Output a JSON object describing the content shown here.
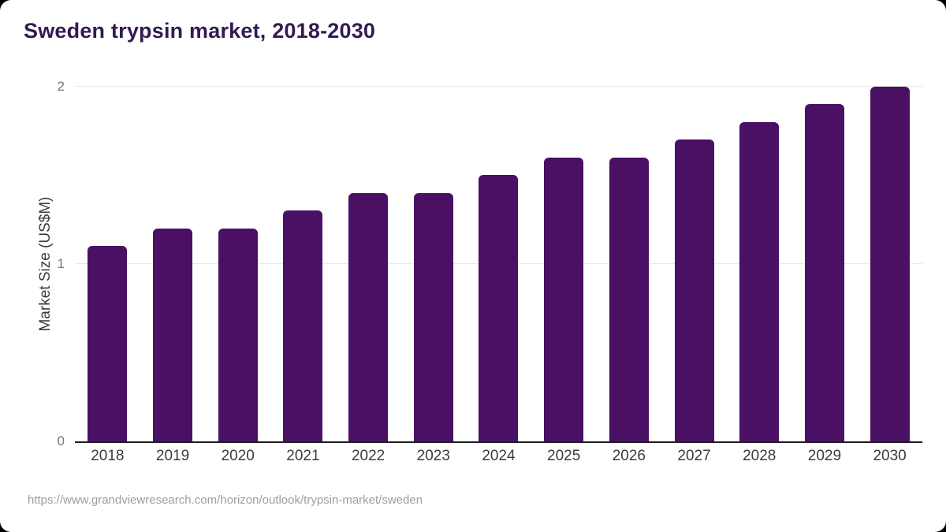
{
  "page": {
    "title": "Sweden trypsin market, 2018-2030",
    "source_url": "https://www.grandviewresearch.com/horizon/outlook/trypsin-market/sweden"
  },
  "chart_data": {
    "type": "bar",
    "title": "Sweden trypsin market, 2018-2030",
    "categories": [
      "2018",
      "2019",
      "2020",
      "2021",
      "2022",
      "2023",
      "2024",
      "2025",
      "2026",
      "2027",
      "2028",
      "2029",
      "2030"
    ],
    "values": [
      1.1,
      1.2,
      1.2,
      1.3,
      1.4,
      1.4,
      1.5,
      1.6,
      1.6,
      1.7,
      1.8,
      1.9,
      2.0
    ],
    "xlabel": "",
    "ylabel": "Market Size (US$M)",
    "ylim": [
      0,
      2
    ],
    "yticks": [
      0,
      1,
      2
    ],
    "grid": true,
    "legend": false
  },
  "colors": {
    "bar": "#4a1063",
    "title_text": "#311b52",
    "axis_line": "#1f1f1f",
    "gridline": "#e9e9e9",
    "tick_text": "#767676",
    "category_text": "#3c3c3c",
    "source_text": "#9e9e9e",
    "card_background": "#ffffff",
    "page_background": "#000000"
  }
}
